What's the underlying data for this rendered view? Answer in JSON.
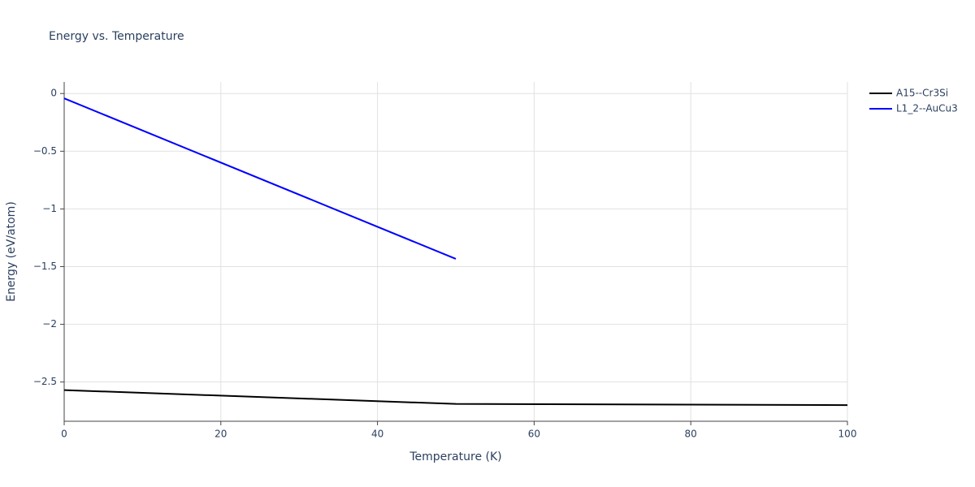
{
  "chart_data": {
    "type": "line",
    "title": "Energy vs. Temperature",
    "x_label": "Temperature (K)",
    "y_label": "Energy (eV/atom)",
    "xlim": [
      0,
      100
    ],
    "xticks": [
      0,
      20,
      40,
      60,
      80,
      100
    ],
    "ylim": [
      -2.84,
      0.1
    ],
    "yticks": [
      {
        "value": -2.5,
        "label": "−2.5"
      },
      {
        "value": -2,
        "label": "−2"
      },
      {
        "value": -1.5,
        "label": "−1.5"
      },
      {
        "value": -1,
        "label": "−1"
      },
      {
        "value": -0.5,
        "label": "−0.5"
      },
      0
    ],
    "grid": true,
    "legend": "right",
    "series": [
      {
        "name": "A15--Cr3Si",
        "color": "#000000",
        "x": [
          0,
          50,
          100
        ],
        "values": [
          -2.57,
          -2.69,
          -2.7
        ]
      },
      {
        "name": "L1_2--AuCu3",
        "color": "#0000ff",
        "x": [
          0,
          50
        ],
        "values": [
          -0.042,
          -1.433
        ]
      }
    ]
  }
}
